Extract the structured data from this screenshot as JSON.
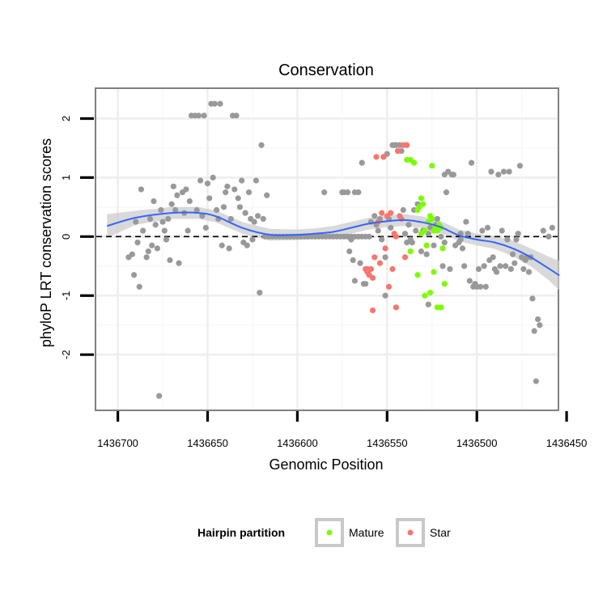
{
  "chart_data": {
    "type": "scatter",
    "title": "Conservation",
    "xlabel": "Genomic Position",
    "ylabel": "phyloP LRT conservation scores",
    "x_reversed": true,
    "xlim": [
      1436455,
      1436712
    ],
    "ylim": [
      -2.93,
      2.5
    ],
    "x_ticks": [
      1436700,
      1436650,
      1436600,
      1436550,
      1436500,
      1436450
    ],
    "x_tick_labels": [
      "1436700",
      "1436650",
      "1436600",
      "1436550",
      "1436500",
      "1436450"
    ],
    "y_ticks": [
      2,
      1,
      0,
      -1,
      -2
    ],
    "y_tick_labels": [
      "2",
      "1",
      "0",
      "-1",
      "-2"
    ],
    "reference_line_y": 0,
    "legend": {
      "title": "Hairpin partition",
      "entries": [
        {
          "name": "Mature",
          "color": "#7CFC00"
        },
        {
          "name": "Star",
          "color": "#F8766D"
        }
      ]
    },
    "colors": {
      "other": "#999999",
      "mature": "#7CFC00",
      "star": "#F8766D",
      "smooth": "#3366FF",
      "ribbon": "#cccccc"
    },
    "series": [
      {
        "name": "Other",
        "points": [
          [
            1436694,
            -0.35
          ],
          [
            1436692,
            -0.3
          ],
          [
            1436691,
            -0.65
          ],
          [
            1436690,
            0.25
          ],
          [
            1436689,
            -0.1
          ],
          [
            1436688,
            -0.85
          ],
          [
            1436687,
            0.8
          ],
          [
            1436686,
            0.1
          ],
          [
            1436684,
            -0.35
          ],
          [
            1436683,
            -0.25
          ],
          [
            1436682,
            0.3
          ],
          [
            1436681,
            -0.15
          ],
          [
            1436680,
            0.6
          ],
          [
            1436679,
            0.2
          ],
          [
            1436678,
            -0.2
          ],
          [
            1436677,
            -2.7
          ],
          [
            1436676,
            0.45
          ],
          [
            1436675,
            0.25
          ],
          [
            1436674,
            0.1
          ],
          [
            1436673,
            -0.05
          ],
          [
            1436672,
            0.3
          ],
          [
            1436671,
            -0.4
          ],
          [
            1436670,
            0.55
          ],
          [
            1436669,
            0.85
          ],
          [
            1436668,
            0.45
          ],
          [
            1436667,
            0.7
          ],
          [
            1436666,
            -0.45
          ],
          [
            1436664,
            0.75
          ],
          [
            1436663,
            0.4
          ],
          [
            1436662,
            0.8
          ],
          [
            1436661,
            0.1
          ],
          [
            1436660,
            0.6
          ],
          [
            1436659,
            2.05
          ],
          [
            1436657,
            2.05
          ],
          [
            1436656,
            0.45
          ],
          [
            1436655,
            2.05
          ],
          [
            1436654,
            0.95
          ],
          [
            1436653,
            0.35
          ],
          [
            1436652,
            2.05
          ],
          [
            1436651,
            0.15
          ],
          [
            1436650,
            0.9
          ],
          [
            1436649,
            0.65
          ],
          [
            1436648,
            2.25
          ],
          [
            1436647,
            1.0
          ],
          [
            1436646,
            2.25
          ],
          [
            1436645,
            0.45
          ],
          [
            1436644,
            0.3
          ],
          [
            1436643,
            2.25
          ],
          [
            1436642,
            -0.15
          ],
          [
            1436641,
            0.5
          ],
          [
            1436640,
            0.75
          ],
          [
            1436639,
            0.85
          ],
          [
            1436638,
            -0.2
          ],
          [
            1436637,
            0.3
          ],
          [
            1436636,
            2.05
          ],
          [
            1436635,
            0.8
          ],
          [
            1436634,
            2.05
          ],
          [
            1436633,
            0.65
          ],
          [
            1436632,
            0.5
          ],
          [
            1436631,
            0.95
          ],
          [
            1436630,
            -0.1
          ],
          [
            1436629,
            0.4
          ],
          [
            1436628,
            -0.15
          ],
          [
            1436627,
            0.75
          ],
          [
            1436626,
            0.3
          ],
          [
            1436625,
            -0.05
          ],
          [
            1436624,
            0.25
          ],
          [
            1436623,
            0.95
          ],
          [
            1436622,
            0.35
          ],
          [
            1436621,
            -0.95
          ],
          [
            1436620,
            1.55
          ],
          [
            1436619,
            0.3
          ],
          [
            1436618,
            0.0
          ],
          [
            1436617,
            0.7
          ],
          [
            1436616,
            0.0
          ],
          [
            1436614,
            0.0
          ],
          [
            1436612,
            0.0
          ],
          [
            1436610,
            0.0
          ],
          [
            1436608,
            0.0
          ],
          [
            1436606,
            0.0
          ],
          [
            1436604,
            0.0
          ],
          [
            1436602,
            0.0
          ],
          [
            1436600,
            0.0
          ],
          [
            1436598,
            0.0
          ],
          [
            1436596,
            0.0
          ],
          [
            1436594,
            0.0
          ],
          [
            1436592,
            0.0
          ],
          [
            1436590,
            0.0
          ],
          [
            1436588,
            0.0
          ],
          [
            1436586,
            0.0
          ],
          [
            1436584,
            0.0
          ],
          [
            1436582,
            0.0
          ],
          [
            1436580,
            0.0
          ],
          [
            1436578,
            0.0
          ],
          [
            1436576,
            0.0
          ],
          [
            1436574,
            0.0
          ],
          [
            1436572,
            0.0
          ],
          [
            1436570,
            0.0
          ],
          [
            1436568,
            0.0
          ],
          [
            1436566,
            0.0
          ],
          [
            1436564,
            0.0
          ],
          [
            1436562,
            0.0
          ],
          [
            1436560,
            0.0
          ],
          [
            1436575,
            0.75
          ],
          [
            1436574,
            0.75
          ],
          [
            1436572,
            0.75
          ],
          [
            1436571,
            -0.25
          ],
          [
            1436570,
            -0.05
          ],
          [
            1436569,
            -0.4
          ],
          [
            1436568,
            0.75
          ],
          [
            1436566,
            0.75
          ],
          [
            1436565,
            -0.45
          ],
          [
            1436564,
            1.25
          ],
          [
            1436563,
            -0.8
          ],
          [
            1436562,
            -0.8
          ],
          [
            1436561,
            -0.55
          ],
          [
            1436559,
            0.25
          ],
          [
            1436557,
            0.35
          ],
          [
            1436556,
            0.2
          ],
          [
            1436555,
            0.1
          ],
          [
            1436554,
            0.3
          ],
          [
            1436553,
            -0.05
          ],
          [
            1436552,
            1.35
          ],
          [
            1436551,
            -0.35
          ],
          [
            1436550,
            1.4
          ],
          [
            1436549,
            0.3
          ],
          [
            1436548,
            0.15
          ],
          [
            1436547,
            1.55
          ],
          [
            1436546,
            1.55
          ],
          [
            1436545,
            1.55
          ],
          [
            1436544,
            1.45
          ],
          [
            1436543,
            1.55
          ],
          [
            1436542,
            1.45
          ],
          [
            1436541,
            0.45
          ],
          [
            1436540,
            0.05
          ],
          [
            1436539,
            -0.1
          ],
          [
            1436538,
            0.2
          ],
          [
            1436537,
            -0.05
          ],
          [
            1436536,
            -0.1
          ],
          [
            1436535,
            0.45
          ],
          [
            1436534,
            0.1
          ],
          [
            1436533,
            0.55
          ],
          [
            1436531,
            -0.25
          ],
          [
            1436530,
            0.1
          ],
          [
            1436528,
            -0.3
          ],
          [
            1436527,
            0.05
          ],
          [
            1436526,
            0.15
          ],
          [
            1436524,
            -0.15
          ],
          [
            1436523,
            0.2
          ],
          [
            1436522,
            0.3
          ],
          [
            1436520,
            0.0
          ],
          [
            1436519,
            -0.5
          ],
          [
            1436518,
            -0.1
          ],
          [
            1436517,
            0.75
          ],
          [
            1436516,
            1.1
          ],
          [
            1436515,
            -0.55
          ],
          [
            1436514,
            1.05
          ],
          [
            1436513,
            1.05
          ],
          [
            1436512,
            -0.15
          ],
          [
            1436510,
            -0.1
          ],
          [
            1436509,
            0.05
          ],
          [
            1436508,
            -0.2
          ],
          [
            1436507,
            -0.5
          ],
          [
            1436506,
            0.25
          ],
          [
            1436505,
            0.05
          ],
          [
            1436504,
            -0.75
          ],
          [
            1436503,
            1.25
          ],
          [
            1436502,
            -0.85
          ],
          [
            1436501,
            -0.8
          ],
          [
            1436500,
            -0.85
          ],
          [
            1436499,
            -0.55
          ],
          [
            1436498,
            -0.85
          ],
          [
            1436497,
            0.1
          ],
          [
            1436496,
            -0.5
          ],
          [
            1436495,
            -0.85
          ],
          [
            1436494,
            0.15
          ],
          [
            1436493,
            -0.4
          ],
          [
            1436492,
            1.1
          ],
          [
            1436491,
            -0.35
          ],
          [
            1436490,
            -0.55
          ],
          [
            1436489,
            -0.6
          ],
          [
            1436488,
            1.05
          ],
          [
            1436487,
            -0.5
          ],
          [
            1436486,
            0.1
          ],
          [
            1436485,
            1.1
          ],
          [
            1436484,
            -0.5
          ],
          [
            1436483,
            -0.05
          ],
          [
            1436482,
            1.1
          ],
          [
            1436481,
            -0.55
          ],
          [
            1436480,
            -0.3
          ],
          [
            1436479,
            -0.45
          ],
          [
            1436478,
            -0.05
          ],
          [
            1436477,
            0.05
          ],
          [
            1436476,
            1.2
          ],
          [
            1436475,
            -0.35
          ],
          [
            1436474,
            -0.55
          ],
          [
            1436473,
            -0.4
          ],
          [
            1436472,
            -0.35
          ],
          [
            1436471,
            -0.6
          ],
          [
            1436470,
            -0.35
          ],
          [
            1436469,
            -1.05
          ],
          [
            1436468,
            -1.6
          ],
          [
            1436467,
            -2.45
          ],
          [
            1436466,
            -1.4
          ],
          [
            1436465,
            -1.5
          ],
          [
            1436463,
            0.1
          ],
          [
            1436460,
            0.0
          ],
          [
            1436458,
            0.15
          ],
          [
            1436527,
            -1.15
          ],
          [
            1436518,
            1.05
          ],
          [
            1436509,
            -0.05
          ],
          [
            1436551,
            -1.0
          ],
          [
            1436568,
            -0.75
          ],
          [
            1436585,
            0.75
          ]
        ]
      },
      {
        "name": "Mature",
        "points": [
          [
            1436539,
            1.3
          ],
          [
            1436537,
            1.3
          ],
          [
            1436535,
            1.25
          ],
          [
            1436533,
            0.45
          ],
          [
            1436532,
            0.5
          ],
          [
            1436531,
            0.65
          ],
          [
            1436530,
            0.55
          ],
          [
            1436529,
            0.1
          ],
          [
            1436528,
            -0.15
          ],
          [
            1436527,
            0.25
          ],
          [
            1436526,
            0.35
          ],
          [
            1436525,
            0.3
          ],
          [
            1436524,
            0.1
          ],
          [
            1436523,
            0.15
          ],
          [
            1436522,
            0.1
          ],
          [
            1436521,
            0.2
          ],
          [
            1436520,
            0.15
          ],
          [
            1436519,
            -0.2
          ],
          [
            1436537,
            -0.25
          ],
          [
            1436533,
            -0.65
          ],
          [
            1436529,
            -1.0
          ],
          [
            1436526,
            -0.95
          ],
          [
            1436524,
            -0.6
          ],
          [
            1436522,
            -1.2
          ],
          [
            1436520,
            -1.2
          ],
          [
            1436518,
            -0.8
          ],
          [
            1436525,
            1.2
          ],
          [
            1436531,
            0.05
          ]
        ]
      },
      {
        "name": "Star",
        "points": [
          [
            1436562,
            -0.55
          ],
          [
            1436561,
            -0.6
          ],
          [
            1436560,
            -0.65
          ],
          [
            1436559,
            -0.55
          ],
          [
            1436558,
            -1.25
          ],
          [
            1436557,
            -0.35
          ],
          [
            1436556,
            1.35
          ],
          [
            1436555,
            0.25
          ],
          [
            1436554,
            -0.45
          ],
          [
            1436553,
            0.4
          ],
          [
            1436552,
            1.35
          ],
          [
            1436551,
            -0.2
          ],
          [
            1436550,
            0.35
          ],
          [
            1436549,
            -0.85
          ],
          [
            1436548,
            0.4
          ],
          [
            1436547,
            -0.55
          ],
          [
            1436546,
            0.05
          ],
          [
            1436545,
            -1.2
          ],
          [
            1436544,
            1.45
          ],
          [
            1436543,
            0.35
          ],
          [
            1436542,
            0.3
          ],
          [
            1436541,
            1.55
          ],
          [
            1436540,
            -0.35
          ],
          [
            1436539,
            1.55
          ],
          [
            1436558,
            -0.7
          ],
          [
            1436545,
            0.0
          ]
        ]
      }
    ],
    "smooth_line": {
      "x": [
        1436706,
        1436690,
        1436670,
        1436655,
        1436645,
        1436630,
        1436615,
        1436600,
        1436590,
        1436580,
        1436570,
        1436560,
        1436550,
        1436540,
        1436530,
        1436520,
        1436510,
        1436500,
        1436490,
        1436480,
        1436470,
        1436460,
        1436454
      ],
      "y": [
        0.18,
        0.32,
        0.4,
        0.4,
        0.34,
        0.14,
        0.03,
        0.03,
        0.05,
        0.08,
        0.15,
        0.22,
        0.26,
        0.28,
        0.24,
        0.16,
        0.02,
        -0.05,
        -0.1,
        -0.2,
        -0.35,
        -0.54,
        -0.66
      ],
      "ci_half_width": [
        0.2,
        0.12,
        0.1,
        0.1,
        0.1,
        0.1,
        0.1,
        0.09,
        0.09,
        0.1,
        0.1,
        0.1,
        0.1,
        0.1,
        0.1,
        0.1,
        0.1,
        0.1,
        0.11,
        0.13,
        0.15,
        0.2,
        0.25
      ]
    }
  }
}
